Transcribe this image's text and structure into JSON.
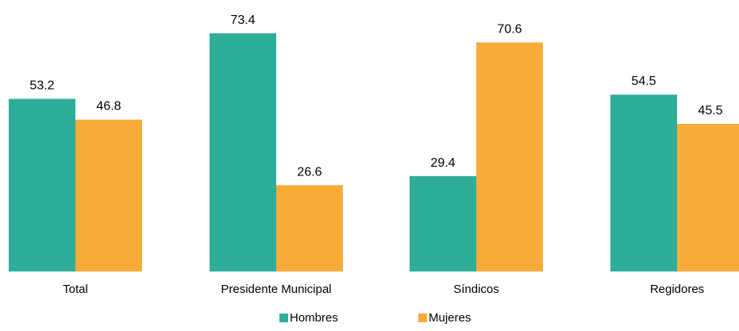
{
  "chart_data": {
    "type": "bar",
    "categories": [
      "Total",
      "Presidente Municipal",
      "Síndicos",
      "Regidores"
    ],
    "series": [
      {
        "name": "Hombres",
        "values": [
          53.2,
          73.4,
          29.4,
          54.5
        ],
        "color": "#2eae9a"
      },
      {
        "name": "Mujeres",
        "values": [
          46.8,
          26.6,
          70.6,
          45.5
        ],
        "color": "#f9ab3a"
      }
    ],
    "value_labels": [
      [
        "53.2",
        "73.4",
        "29.4",
        "54.5"
      ],
      [
        "46.8",
        "26.6",
        "70.6",
        "45.5"
      ]
    ],
    "ylim": [
      0,
      73.4
    ],
    "grid": false,
    "legend_position": "bottom",
    "title": "",
    "xlabel": "",
    "ylabel": ""
  }
}
